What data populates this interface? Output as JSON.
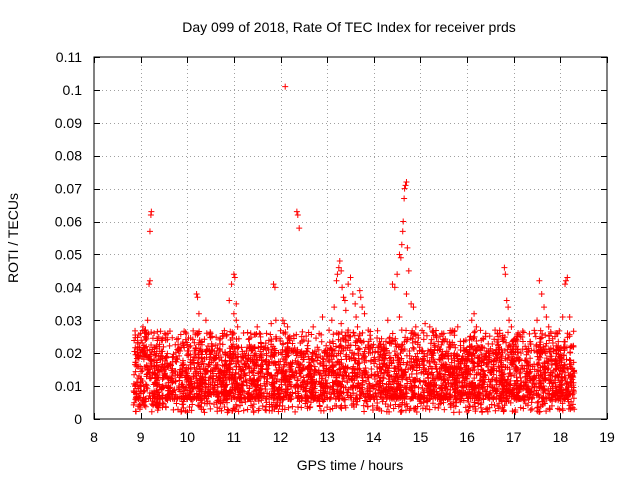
{
  "chart_data": {
    "type": "scatter",
    "title": "Day 099 of 2018, Rate Of TEC Index for receiver prds",
    "xlabel": "GPS time / hours",
    "ylabel": "ROTI / TECUs",
    "xlim": [
      8,
      19
    ],
    "ylim": [
      0,
      0.11
    ],
    "xticks": [
      8,
      9,
      10,
      11,
      12,
      13,
      14,
      15,
      16,
      17,
      18,
      19
    ],
    "yticks": [
      0,
      0.01,
      0.02,
      0.03,
      0.04,
      0.05,
      0.06,
      0.07,
      0.08,
      0.09,
      0.1,
      0.11
    ],
    "xtick_labels": [
      "8",
      "9",
      "10",
      "11",
      "12",
      "13",
      "14",
      "15",
      "16",
      "17",
      "18",
      "19"
    ],
    "ytick_labels": [
      "0",
      "0.01",
      "0.02",
      "0.03",
      "0.04",
      "0.05",
      "0.06",
      "0.07",
      "0.08",
      "0.09",
      "0.1",
      "0.11"
    ],
    "grid": true,
    "marker": "+",
    "color": "#ff0000",
    "data_range_x": [
      8.85,
      18.3
    ],
    "series": [
      {
        "name": "ROTI",
        "points": [
          [
            9.0,
            0.026
          ],
          [
            9.05,
            0.028
          ],
          [
            9.1,
            0.027
          ],
          [
            9.15,
            0.03
          ],
          [
            9.18,
            0.041
          ],
          [
            9.2,
            0.042
          ],
          [
            9.2,
            0.057
          ],
          [
            9.22,
            0.062
          ],
          [
            9.23,
            0.063
          ],
          [
            9.1,
            0.024
          ],
          [
            9.12,
            0.022
          ],
          [
            10.2,
            0.038
          ],
          [
            10.22,
            0.037
          ],
          [
            10.25,
            0.032
          ],
          [
            10.4,
            0.03
          ],
          [
            10.5,
            0.026
          ],
          [
            10.9,
            0.036
          ],
          [
            10.95,
            0.041
          ],
          [
            11.0,
            0.044
          ],
          [
            11.02,
            0.043
          ],
          [
            11.05,
            0.035
          ],
          [
            11.0,
            0.032
          ],
          [
            11.05,
            0.03
          ],
          [
            11.08,
            0.028
          ],
          [
            11.5,
            0.028
          ],
          [
            11.7,
            0.026
          ],
          [
            11.8,
            0.029
          ],
          [
            11.85,
            0.041
          ],
          [
            11.88,
            0.04
          ],
          [
            11.9,
            0.03
          ],
          [
            12.1,
            0.101
          ],
          [
            12.05,
            0.03
          ],
          [
            12.08,
            0.029
          ],
          [
            12.15,
            0.028
          ],
          [
            12.2,
            0.025
          ],
          [
            12.35,
            0.063
          ],
          [
            12.37,
            0.062
          ],
          [
            12.4,
            0.058
          ],
          [
            12.5,
            0.024
          ],
          [
            12.7,
            0.028
          ],
          [
            12.9,
            0.031
          ],
          [
            13.1,
            0.03
          ],
          [
            13.15,
            0.034
          ],
          [
            13.2,
            0.042
          ],
          [
            13.22,
            0.044
          ],
          [
            13.25,
            0.046
          ],
          [
            13.27,
            0.048
          ],
          [
            13.3,
            0.045
          ],
          [
            13.32,
            0.04
          ],
          [
            13.35,
            0.037
          ],
          [
            13.38,
            0.036
          ],
          [
            13.4,
            0.033
          ],
          [
            13.45,
            0.041
          ],
          [
            13.5,
            0.043
          ],
          [
            13.55,
            0.038
          ],
          [
            13.6,
            0.035
          ],
          [
            13.62,
            0.031
          ],
          [
            13.65,
            0.028
          ],
          [
            13.7,
            0.039
          ],
          [
            13.72,
            0.037
          ],
          [
            13.75,
            0.034
          ],
          [
            13.8,
            0.032
          ],
          [
            13.3,
            0.029
          ],
          [
            13.45,
            0.027
          ],
          [
            13.5,
            0.025
          ],
          [
            14.3,
            0.03
          ],
          [
            14.4,
            0.041
          ],
          [
            14.45,
            0.04
          ],
          [
            14.5,
            0.044
          ],
          [
            14.55,
            0.05
          ],
          [
            14.58,
            0.049
          ],
          [
            14.6,
            0.053
          ],
          [
            14.62,
            0.057
          ],
          [
            14.63,
            0.06
          ],
          [
            14.65,
            0.067
          ],
          [
            14.66,
            0.07
          ],
          [
            14.68,
            0.071
          ],
          [
            14.7,
            0.072
          ],
          [
            14.72,
            0.052
          ],
          [
            14.75,
            0.045
          ],
          [
            14.8,
            0.035
          ],
          [
            14.85,
            0.034
          ],
          [
            14.9,
            0.028
          ],
          [
            14.7,
            0.038
          ],
          [
            14.55,
            0.031
          ],
          [
            14.6,
            0.027
          ],
          [
            14.8,
            0.026
          ],
          [
            15.1,
            0.029
          ],
          [
            15.2,
            0.028
          ],
          [
            15.5,
            0.026
          ],
          [
            15.8,
            0.028
          ],
          [
            16.1,
            0.03
          ],
          [
            16.15,
            0.032
          ],
          [
            16.2,
            0.028
          ],
          [
            16.4,
            0.026
          ],
          [
            16.6,
            0.027
          ],
          [
            16.7,
            0.026
          ],
          [
            16.8,
            0.046
          ],
          [
            16.82,
            0.044
          ],
          [
            16.85,
            0.036
          ],
          [
            16.88,
            0.034
          ],
          [
            16.9,
            0.03
          ],
          [
            16.95,
            0.028
          ],
          [
            17.0,
            0.024
          ],
          [
            17.05,
            0.022
          ],
          [
            17.5,
            0.03
          ],
          [
            17.55,
            0.042
          ],
          [
            17.6,
            0.038
          ],
          [
            17.65,
            0.034
          ],
          [
            17.7,
            0.031
          ],
          [
            17.75,
            0.028
          ],
          [
            17.8,
            0.026
          ],
          [
            18.05,
            0.031
          ],
          [
            18.1,
            0.041
          ],
          [
            18.12,
            0.042
          ],
          [
            18.15,
            0.043
          ],
          [
            18.2,
            0.031
          ],
          [
            18.25,
            0.022
          ]
        ]
      }
    ],
    "dense_band": {
      "note": "Dense cloud of ROTI samples between 8.85 and 18.3 hours",
      "x_start": 8.85,
      "x_end": 18.3,
      "y_min": 0.002,
      "y_typical_low": 0.006,
      "y_typical_high": 0.022,
      "y_max": 0.027,
      "samples": 4000
    }
  }
}
